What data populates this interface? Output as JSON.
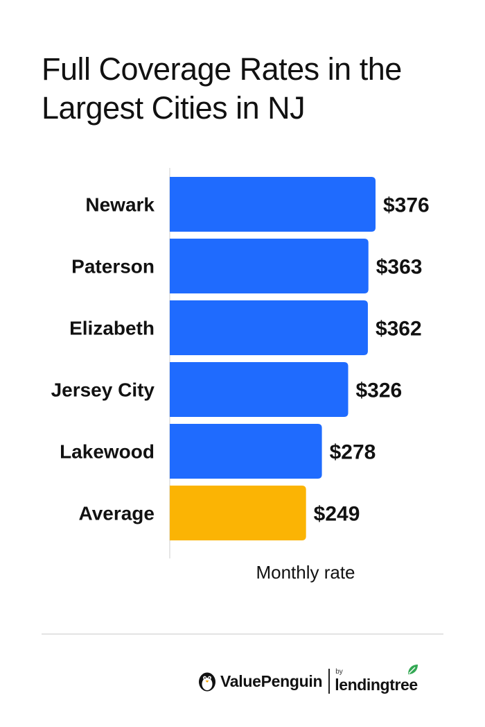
{
  "title": "Full Coverage Rates in the Largest Cities in NJ",
  "colors": {
    "city_bar": "#1f6bfe",
    "average_bar": "#fbb404",
    "axis_line": "#dddddd"
  },
  "chart_data": {
    "type": "bar",
    "orientation": "horizontal",
    "categories": [
      "Newark",
      "Paterson",
      "Elizabeth",
      "Jersey City",
      "Lakewood",
      "Average"
    ],
    "values": [
      376,
      363,
      362,
      326,
      278,
      249
    ],
    "value_labels": [
      "$376",
      "$363",
      "$362",
      "$326",
      "$278",
      "$249"
    ],
    "highlight": "Average",
    "xlabel": "Monthly rate",
    "xlim": [
      0,
      376
    ],
    "grid": false
  },
  "brand": {
    "valuepenguin": "ValuePenguin",
    "by": "by",
    "lendingtree": "lendingtree",
    "icons": [
      "penguin-logo-icon",
      "leaf-logo-icon"
    ]
  }
}
